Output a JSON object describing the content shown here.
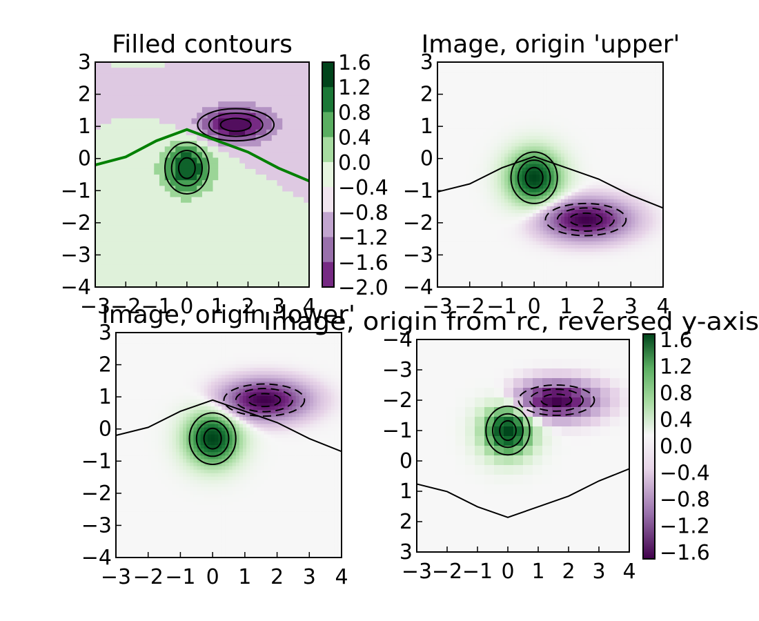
{
  "chart_data": [
    {
      "type": "heatmap",
      "subtype": "filled-contour",
      "title": "Filled contours",
      "xlim": [
        -3,
        4
      ],
      "ylim": [
        -4,
        3
      ],
      "y_inverted": false,
      "xticks": [
        "−3",
        "−2",
        "−1",
        "0",
        "1",
        "2",
        "3",
        "4"
      ],
      "yticks": [
        "−4",
        "−3",
        "−2",
        "−1",
        "0",
        "1",
        "2",
        "3"
      ],
      "colormap": "PRGn",
      "gaussians": [
        {
          "label": "green peak",
          "x": 0.0,
          "y": -0.3,
          "amplitude": 1.6
        },
        {
          "label": "purple trough",
          "x": 1.6,
          "y": 1.05,
          "amplitude": -2.0
        }
      ],
      "levels": [
        -2.0,
        -1.6,
        -1.2,
        -0.8,
        -0.4,
        0.0,
        0.4,
        0.8,
        1.2,
        1.6
      ],
      "zero_contour_color": "#008000",
      "colorbar": {
        "ticks": [
          "1.6",
          "1.2",
          "0.8",
          "0.4",
          "0.0",
          "−0.4",
          "−0.8",
          "−1.2",
          "−1.6",
          "−2.0"
        ],
        "colors": [
          "#00441b",
          "#1b7837",
          "#5aae61",
          "#a6dba0",
          "#e6f5e0",
          "#f1e5ef",
          "#c2a5cf",
          "#9970ab",
          "#762a83",
          "#40004b"
        ]
      }
    },
    {
      "type": "heatmap",
      "subtype": "image",
      "title": "Image, origin 'upper'",
      "xlim": [
        -3,
        4
      ],
      "ylim": [
        -4,
        3
      ],
      "y_inverted": false,
      "xticks": [
        "−3",
        "−2",
        "−1",
        "0",
        "1",
        "2",
        "3",
        "4"
      ],
      "yticks": [
        "−4",
        "−3",
        "−2",
        "−1",
        "0",
        "1",
        "2",
        "3"
      ],
      "colormap": "PRGn",
      "gaussians": [
        {
          "label": "green peak",
          "x": 0.0,
          "y": -0.6,
          "amplitude": 1.6
        },
        {
          "label": "purple trough",
          "x": 1.6,
          "y": -1.9,
          "amplitude": -2.0
        }
      ]
    },
    {
      "type": "heatmap",
      "subtype": "image",
      "title": "Image, origin 'lower'",
      "xlim": [
        -3,
        4
      ],
      "ylim": [
        -4,
        3
      ],
      "y_inverted": false,
      "xticks": [
        "−3",
        "−2",
        "−1",
        "0",
        "1",
        "2",
        "3",
        "4"
      ],
      "yticks": [
        "−4",
        "−3",
        "−2",
        "−1",
        "0",
        "1",
        "2",
        "3"
      ],
      "colormap": "PRGn",
      "gaussians": [
        {
          "label": "green peak",
          "x": 0.0,
          "y": -0.3,
          "amplitude": 1.6
        },
        {
          "label": "purple trough",
          "x": 1.6,
          "y": 0.9,
          "amplitude": -2.0
        }
      ]
    },
    {
      "type": "heatmap",
      "subtype": "image",
      "title": "Image, origin from rc, reversed y-axis",
      "xlim": [
        -3,
        4
      ],
      "ylim": [
        3,
        -4
      ],
      "y_inverted": true,
      "xticks": [
        "−3",
        "−2",
        "−1",
        "0",
        "1",
        "2",
        "3",
        "4"
      ],
      "yticks": [
        "−4",
        "−3",
        "−2",
        "−1",
        "0",
        "1",
        "2",
        "3"
      ],
      "colormap": "PRGn",
      "gaussians": [
        {
          "label": "green peak",
          "x": 0.0,
          "y": -1.0,
          "amplitude": 1.6
        },
        {
          "label": "purple trough",
          "x": 1.6,
          "y": -2.0,
          "amplitude": -2.0
        }
      ],
      "colorbar": {
        "ticks": [
          "1.6",
          "1.2",
          "0.8",
          "0.4",
          "0.0",
          "−0.4",
          "−0.8",
          "−1.2",
          "−1.6"
        ]
      }
    }
  ]
}
